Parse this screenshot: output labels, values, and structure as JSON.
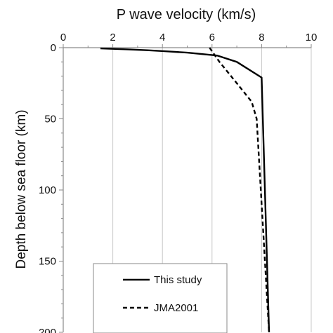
{
  "chart_data": {
    "type": "line",
    "title": "P wave velocity (km/s)",
    "xlabel": "",
    "ylabel": "Depth below sea floor (km)",
    "xlim": [
      0,
      10
    ],
    "ylim": [
      0,
      200
    ],
    "y_inverted": true,
    "x_axis_position": "top",
    "x_ticks": [
      0,
      2,
      4,
      6,
      8,
      10
    ],
    "y_ticks": [
      0,
      50,
      100,
      150,
      200
    ],
    "x_tick_labels": [
      "0",
      "2",
      "4",
      "6",
      "8",
      "10"
    ],
    "y_tick_labels": [
      "0",
      "50",
      "100",
      "150",
      "200"
    ],
    "grid": "vertical",
    "legend_position": "bottom-center",
    "series": [
      {
        "name": "This study",
        "style": "solid",
        "color": "#000000",
        "x": [
          1.5,
          2.6,
          3.4,
          4.1,
          5.0,
          6.2,
          7.0,
          8.0,
          8.3
        ],
        "y": [
          0.5,
          1.2,
          1.8,
          2.5,
          3.5,
          5.5,
          10,
          21,
          200
        ]
      },
      {
        "name": "JMA2001",
        "style": "dashed",
        "color": "#000000",
        "x": [
          5.9,
          6.3,
          7.0,
          7.6,
          7.8,
          8.3
        ],
        "y": [
          0,
          10,
          25,
          38,
          50,
          200
        ]
      }
    ]
  }
}
